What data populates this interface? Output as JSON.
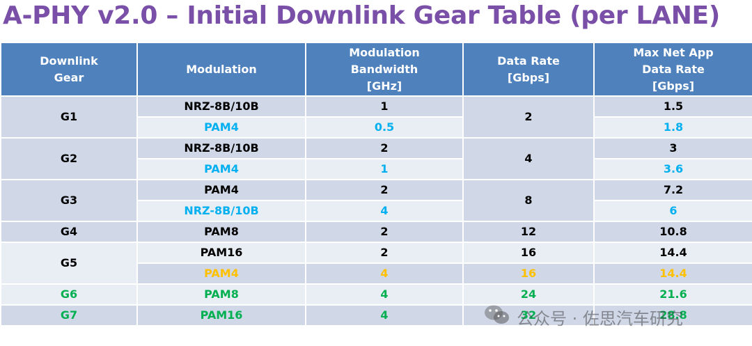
{
  "title": "A-PHY v2.0 – Initial Downlink Gear Table (per LANE)",
  "headers": {
    "gear": [
      "Downlink",
      "Gear"
    ],
    "modulation": "Modulation",
    "bandwidth": [
      "Modulation",
      "Bandwidth",
      "[GHz]"
    ],
    "data_rate": [
      "Data Rate",
      "[Gbps]"
    ],
    "max_net": [
      "Max Net App",
      "Data Rate",
      "[Gbps]"
    ]
  },
  "rows": [
    {
      "gear": "G1",
      "modulation": "NRZ-8B/10B",
      "bandwidth": "1",
      "data_rate": "2",
      "max_net": "1.5"
    },
    {
      "modulation": "PAM4",
      "bandwidth": "0.5",
      "max_net": "1.8"
    },
    {
      "gear": "G2",
      "modulation": "NRZ-8B/10B",
      "bandwidth": "2",
      "data_rate": "4",
      "max_net": "3"
    },
    {
      "modulation": "PAM4",
      "bandwidth": "1",
      "max_net": "3.6"
    },
    {
      "gear": "G3",
      "modulation": "PAM4",
      "bandwidth": "2",
      "data_rate": "8",
      "max_net": "7.2"
    },
    {
      "modulation": "NRZ-8B/10B",
      "bandwidth": "4",
      "max_net": "6"
    },
    {
      "gear": "G4",
      "modulation": "PAM8",
      "bandwidth": "2",
      "data_rate": "12",
      "max_net": "10.8"
    },
    {
      "gear": "G5",
      "modulation": "PAM16",
      "bandwidth": "2",
      "data_rate": "16",
      "max_net": "14.4"
    },
    {
      "modulation": "PAM4",
      "bandwidth": "4",
      "data_rate": "16",
      "max_net": "14.4"
    },
    {
      "gear": "G6",
      "modulation": "PAM8",
      "bandwidth": "4",
      "data_rate": "24",
      "max_net": "21.6"
    },
    {
      "gear": "G7",
      "modulation": "PAM16",
      "bandwidth": "4",
      "data_rate": "32",
      "max_net": "28.8"
    }
  ],
  "watermark": {
    "icon": "wechat-icon",
    "text": "公众号 · 佐思汽车研究"
  },
  "colors": {
    "title": "#7a4fa8",
    "header_bg": "#4f81bd",
    "band_dark": "#d0d8e8",
    "band_light": "#e9edf4",
    "text_black": "#000000",
    "text_cyan": "#00b0f0",
    "text_orange": "#ffc000",
    "text_green": "#00b050"
  }
}
